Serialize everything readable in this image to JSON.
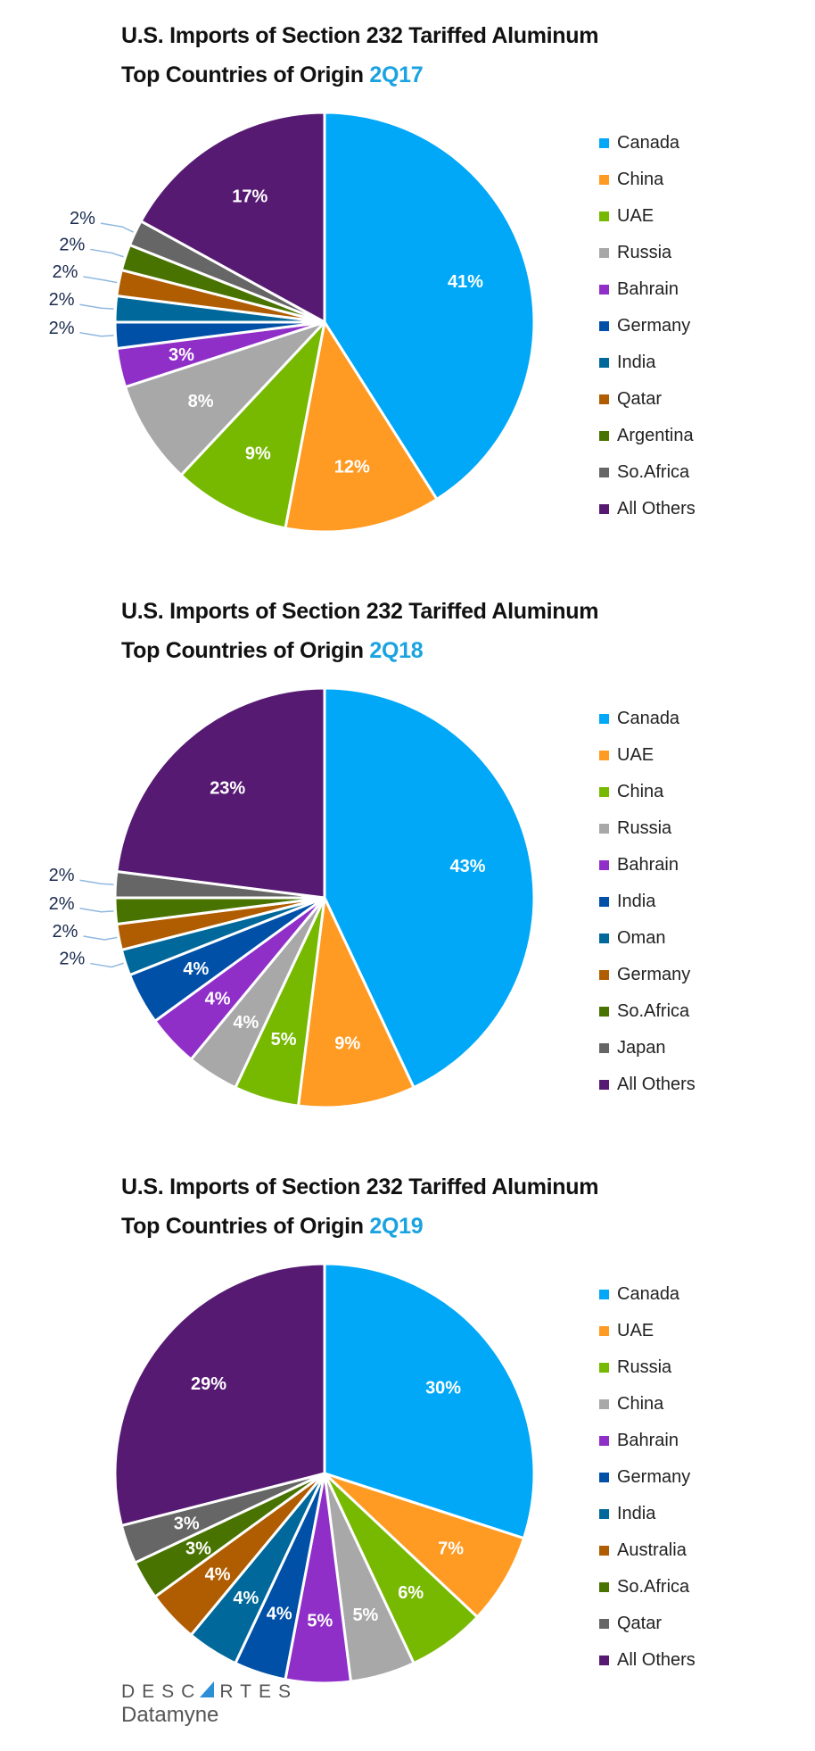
{
  "chart_data": [
    {
      "type": "pie",
      "title_line1": "U.S. Imports of Section 232 Tariffed Aluminum",
      "title_line2": "Top Countries of Origin",
      "period": "2Q17",
      "legend_position": "right",
      "categories": [
        "Canada",
        "China",
        "UAE",
        "Russia",
        "Bahrain",
        "Germany",
        "India",
        "Qatar",
        "Argentina",
        "So.Africa",
        "All Others"
      ],
      "values": [
        41,
        12,
        9,
        8,
        3,
        2,
        2,
        2,
        2,
        2,
        17
      ],
      "labels": [
        "41%",
        "12%",
        "9%",
        "8%",
        "3%",
        "2%",
        "2%",
        "2%",
        "2%",
        "2%",
        "17%"
      ],
      "label_outside": [
        false,
        false,
        false,
        false,
        false,
        true,
        true,
        true,
        true,
        true,
        false
      ],
      "colors": [
        "#00a8f7",
        "#ff9a22",
        "#76b900",
        "#a8a8a8",
        "#8f2fc8",
        "#0050a8",
        "#00689a",
        "#b05c00",
        "#487300",
        "#666666",
        "#561a73"
      ]
    },
    {
      "type": "pie",
      "title_line1": "U.S. Imports of Section 232 Tariffed Aluminum",
      "title_line2": "Top Countries of Origin",
      "period": "2Q18",
      "legend_position": "right",
      "categories": [
        "Canada",
        "UAE",
        "China",
        "Russia",
        "Bahrain",
        "India",
        "Oman",
        "Germany",
        "So.Africa",
        "Japan",
        "All Others"
      ],
      "values": [
        43,
        9,
        5,
        4,
        4,
        4,
        2,
        2,
        2,
        2,
        23
      ],
      "labels": [
        "43%",
        "9%",
        "5%",
        "4%",
        "4%",
        "4%",
        "2%",
        "2%",
        "2%",
        "2%",
        "23%"
      ],
      "label_outside": [
        false,
        false,
        false,
        false,
        false,
        false,
        true,
        true,
        true,
        true,
        false
      ],
      "colors": [
        "#00a8f7",
        "#ff9a22",
        "#76b900",
        "#a8a8a8",
        "#8f2fc8",
        "#0050a8",
        "#00689a",
        "#b05c00",
        "#487300",
        "#666666",
        "#561a73"
      ]
    },
    {
      "type": "pie",
      "title_line1": "U.S. Imports of Section 232 Tariffed Aluminum",
      "title_line2": "Top Countries of Origin",
      "period": "2Q19",
      "legend_position": "right",
      "categories": [
        "Canada",
        "UAE",
        "Russia",
        "China",
        "Bahrain",
        "Germany",
        "India",
        "Australia",
        "So.Africa",
        "Qatar",
        "All Others"
      ],
      "values": [
        30,
        7,
        6,
        5,
        5,
        4,
        4,
        4,
        3,
        3,
        29
      ],
      "labels": [
        "30%",
        "7%",
        "6%",
        "5%",
        "5%",
        "4%",
        "4%",
        "4%",
        "3%",
        "3%",
        "29%"
      ],
      "label_outside": [
        false,
        false,
        false,
        false,
        false,
        false,
        false,
        false,
        false,
        false,
        false
      ],
      "colors": [
        "#00a8f7",
        "#ff9a22",
        "#76b900",
        "#a8a8a8",
        "#8f2fc8",
        "#0050a8",
        "#00689a",
        "#b05c00",
        "#487300",
        "#666666",
        "#561a73"
      ]
    }
  ],
  "logo": {
    "line1": "DESCARTES",
    "line2": "Datamyne"
  }
}
